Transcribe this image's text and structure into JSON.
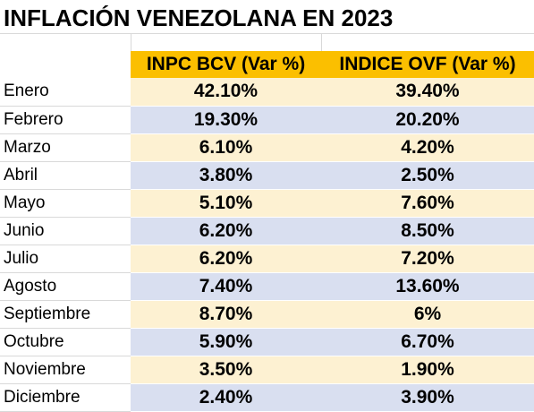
{
  "title": "INFLACIÓN VENEZOLANA EN 2023",
  "chart_data": {
    "type": "table",
    "title": "INFLACIÓN VENEZOLANA EN 2023",
    "columns": [
      "",
      "INPC BCV (Var %)",
      "INDICE OVF (Var %)"
    ],
    "rows": [
      {
        "month": "Enero",
        "inpc": "42.10%",
        "ovf": "39.40%"
      },
      {
        "month": "Febrero",
        "inpc": "19.30%",
        "ovf": "20.20%"
      },
      {
        "month": "Marzo",
        "inpc": "6.10%",
        "ovf": "4.20%"
      },
      {
        "month": "Abril",
        "inpc": "3.80%",
        "ovf": "2.50%"
      },
      {
        "month": "Mayo",
        "inpc": "5.10%",
        "ovf": "7.60%"
      },
      {
        "month": "Junio",
        "inpc": "6.20%",
        "ovf": "8.50%"
      },
      {
        "month": "Julio",
        "inpc": "6.20%",
        "ovf": "7.20%"
      },
      {
        "month": "Agosto",
        "inpc": "7.40%",
        "ovf": "13.60%"
      },
      {
        "month": "Septiembre",
        "inpc": "8.70%",
        "ovf": "6%"
      },
      {
        "month": "Octubre",
        "inpc": "5.90%",
        "ovf": "6.70%"
      },
      {
        "month": "Noviembre",
        "inpc": "3.50%",
        "ovf": "1.90%"
      },
      {
        "month": "Diciembre",
        "inpc": "2.40%",
        "ovf": "3.90%"
      }
    ],
    "colors": {
      "header": "#fbbf00",
      "row_light": "#fdf1d2",
      "row_blue": "#d9dff0"
    }
  }
}
